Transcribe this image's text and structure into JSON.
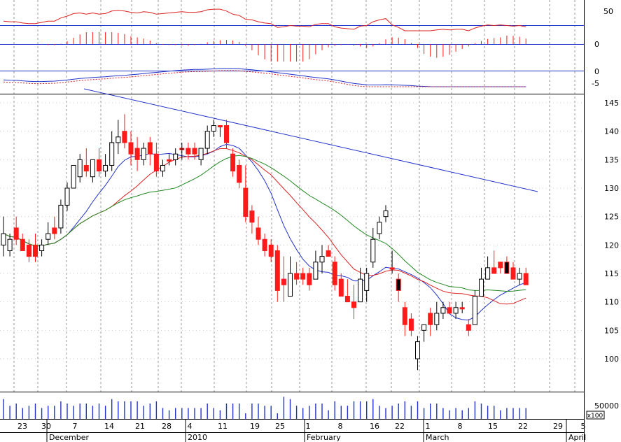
{
  "chart_data": {
    "type": "candlestick",
    "colors": {
      "up_fill": "#ffffff",
      "down_fill": "#ff1a1a",
      "flat_fill": "#000000",
      "ma_short": "#2233cc",
      "ma_mid": "#dd2222",
      "ma_long": "#228822",
      "trendline": "#2233cc",
      "grid": "#999999",
      "volume": "#2233cc"
    },
    "x_axis": {
      "day_labels": [
        "23",
        "30",
        "7",
        "14",
        "21",
        "28",
        "4",
        "11",
        "19",
        "25",
        "1",
        "8",
        "16",
        "22",
        "1",
        "8",
        "15",
        "22",
        "29",
        "5"
      ],
      "month_labels": [
        "December",
        "2010",
        "February",
        "March",
        "April"
      ]
    },
    "price_axis": {
      "ticks": [
        100,
        105,
        110,
        115,
        120,
        125,
        130,
        135,
        140,
        145
      ],
      "range": [
        95,
        147
      ]
    },
    "volume_axis": {
      "tick_label": "50000",
      "multiplier_label": "x100"
    },
    "oscillator_axis": {
      "ticks": [
        "50",
        "0"
      ]
    },
    "histogram_axis": {
      "ticks": [
        "0"
      ]
    },
    "macd_axis": {
      "ticks": [
        "0",
        "-5"
      ]
    },
    "candles": [
      {
        "o": 120,
        "h": 125,
        "l": 118,
        "c": 122
      },
      {
        "o": 119,
        "h": 122,
        "l": 118,
        "c": 121
      },
      {
        "o": 123,
        "h": 125,
        "l": 120,
        "c": 121
      },
      {
        "o": 121,
        "h": 122,
        "l": 119,
        "c": 119
      },
      {
        "o": 120,
        "h": 121,
        "l": 117,
        "c": 118
      },
      {
        "o": 120,
        "h": 122,
        "l": 117,
        "c": 118
      },
      {
        "o": 119,
        "h": 121,
        "l": 118,
        "c": 120
      },
      {
        "o": 121,
        "h": 124,
        "l": 120,
        "c": 122
      },
      {
        "o": 123,
        "h": 125,
        "l": 121,
        "c": 122
      },
      {
        "o": 123,
        "h": 128,
        "l": 122,
        "c": 127
      },
      {
        "o": 127,
        "h": 131,
        "l": 126,
        "c": 130
      },
      {
        "o": 130,
        "h": 134,
        "l": 130,
        "c": 134
      },
      {
        "o": 132,
        "h": 136,
        "l": 131,
        "c": 135
      },
      {
        "o": 134,
        "h": 137,
        "l": 132,
        "c": 133
      },
      {
        "o": 132,
        "h": 135,
        "l": 131,
        "c": 135
      },
      {
        "o": 135,
        "h": 137,
        "l": 132,
        "c": 133
      },
      {
        "o": 133,
        "h": 136,
        "l": 132,
        "c": 134
      },
      {
        "o": 134,
        "h": 140,
        "l": 133,
        "c": 138
      },
      {
        "o": 138,
        "h": 142,
        "l": 136,
        "c": 139
      },
      {
        "o": 140,
        "h": 143,
        "l": 137,
        "c": 138
      },
      {
        "o": 138,
        "h": 140,
        "l": 134,
        "c": 136
      },
      {
        "o": 137,
        "h": 139,
        "l": 133,
        "c": 135
      },
      {
        "o": 135,
        "h": 138,
        "l": 134,
        "c": 137
      },
      {
        "o": 138,
        "h": 139,
        "l": 134,
        "c": 136
      },
      {
        "o": 136,
        "h": 138,
        "l": 132,
        "c": 133
      },
      {
        "o": 133,
        "h": 135,
        "l": 132,
        "c": 134
      },
      {
        "o": 135,
        "h": 136,
        "l": 134,
        "c": 135
      },
      {
        "o": 135,
        "h": 137,
        "l": 134,
        "c": 136
      },
      {
        "o": 137,
        "h": 138,
        "l": 135,
        "c": 137
      },
      {
        "o": 137,
        "h": 138,
        "l": 135,
        "c": 136
      },
      {
        "o": 137,
        "h": 138,
        "l": 135,
        "c": 136
      },
      {
        "o": 135,
        "h": 137,
        "l": 134,
        "c": 137
      },
      {
        "o": 137,
        "h": 141,
        "l": 136,
        "c": 140
      },
      {
        "o": 140,
        "h": 142,
        "l": 139,
        "c": 141
      },
      {
        "o": 141,
        "h": 141,
        "l": 139,
        "c": 141
      },
      {
        "o": 141,
        "h": 142,
        "l": 137,
        "c": 138
      },
      {
        "o": 136,
        "h": 137,
        "l": 132,
        "c": 133
      },
      {
        "o": 134,
        "h": 135,
        "l": 130,
        "c": 131
      },
      {
        "o": 130,
        "h": 134,
        "l": 124,
        "c": 125
      },
      {
        "o": 126,
        "h": 127,
        "l": 122,
        "c": 124
      },
      {
        "o": 123,
        "h": 125,
        "l": 120,
        "c": 121
      },
      {
        "o": 121,
        "h": 122,
        "l": 118,
        "c": 119
      },
      {
        "o": 120,
        "h": 121,
        "l": 117,
        "c": 118
      },
      {
        "o": 119,
        "h": 120,
        "l": 110,
        "c": 112
      },
      {
        "o": 114,
        "h": 118,
        "l": 110,
        "c": 113
      },
      {
        "o": 111,
        "h": 118,
        "l": 111,
        "c": 115
      },
      {
        "o": 115,
        "h": 117,
        "l": 113,
        "c": 114
      },
      {
        "o": 115,
        "h": 116,
        "l": 113,
        "c": 114
      },
      {
        "o": 115,
        "h": 116,
        "l": 112,
        "c": 113
      },
      {
        "o": 114,
        "h": 119,
        "l": 114,
        "c": 117
      },
      {
        "o": 117,
        "h": 120,
        "l": 115,
        "c": 118
      },
      {
        "o": 119,
        "h": 120,
        "l": 118,
        "c": 118
      },
      {
        "o": 117,
        "h": 118,
        "l": 112,
        "c": 113
      },
      {
        "o": 114,
        "h": 115,
        "l": 111,
        "c": 111
      },
      {
        "o": 111,
        "h": 114,
        "l": 110,
        "c": 110
      },
      {
        "o": 110,
        "h": 113,
        "l": 107,
        "c": 109
      },
      {
        "o": 110,
        "h": 116,
        "l": 110,
        "c": 114
      },
      {
        "o": 112,
        "h": 116,
        "l": 110,
        "c": 115
      },
      {
        "o": 117,
        "h": 123,
        "l": 116,
        "c": 121
      },
      {
        "o": 122,
        "h": 125,
        "l": 121,
        "c": 124
      },
      {
        "o": 125,
        "h": 127,
        "l": 124,
        "c": 126
      },
      {
        "o": 116,
        "h": 119,
        "l": 115,
        "c": 116
      },
      {
        "o": 114,
        "h": 115,
        "l": 110,
        "c": 112
      },
      {
        "o": 109,
        "h": 110,
        "l": 104,
        "c": 106
      },
      {
        "o": 107,
        "h": 108,
        "l": 104,
        "c": 105
      },
      {
        "o": 100,
        "h": 104,
        "l": 98,
        "c": 103
      },
      {
        "o": 105,
        "h": 106,
        "l": 103,
        "c": 106
      },
      {
        "o": 108,
        "h": 109,
        "l": 104,
        "c": 106
      },
      {
        "o": 106,
        "h": 110,
        "l": 105,
        "c": 108
      },
      {
        "o": 108,
        "h": 110,
        "l": 107,
        "c": 109
      },
      {
        "o": 109,
        "h": 110,
        "l": 108,
        "c": 108
      },
      {
        "o": 108,
        "h": 110,
        "l": 107,
        "c": 109
      },
      {
        "o": 109,
        "h": 110,
        "l": 108,
        "c": 109
      },
      {
        "o": 106,
        "h": 107,
        "l": 104,
        "c": 105
      },
      {
        "o": 106,
        "h": 112,
        "l": 106,
        "c": 111
      },
      {
        "o": 111,
        "h": 116,
        "l": 111,
        "c": 114
      },
      {
        "o": 114,
        "h": 118,
        "l": 114,
        "c": 116
      },
      {
        "o": 116,
        "h": 119,
        "l": 115,
        "c": 115
      },
      {
        "o": 117,
        "h": 117,
        "l": 115,
        "c": 116
      },
      {
        "o": 117,
        "h": 118,
        "l": 115,
        "c": 115
      },
      {
        "o": 116,
        "h": 117,
        "l": 114,
        "c": 114
      },
      {
        "o": 114,
        "h": 116,
        "l": 113,
        "c": 115
      },
      {
        "o": 115,
        "h": 116,
        "l": 113,
        "c": 113
      }
    ]
  }
}
